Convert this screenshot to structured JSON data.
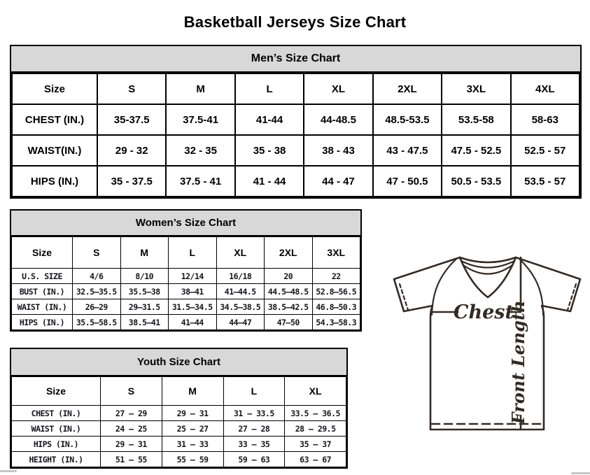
{
  "page": {
    "title": "Basketball Jerseys Size Chart"
  },
  "tables": {
    "men": {
      "title": "Men’s Size Chart",
      "columns": [
        "Size",
        "S",
        "M",
        "L",
        "XL",
        "2XL",
        "3XL",
        "4XL"
      ],
      "rows": [
        {
          "label": "CHEST (IN.)",
          "values": [
            "35-37.5",
            "37.5-41",
            "41-44",
            "44-48.5",
            "48.5-53.5",
            "53.5-58",
            "58-63"
          ]
        },
        {
          "label": "WAIST(IN.)",
          "values": [
            "29 - 32",
            "32 - 35",
            "35 - 38",
            "38 - 43",
            "43 - 47.5",
            "47.5 - 52.5",
            "52.5 - 57"
          ]
        },
        {
          "label": "HIPS (IN.)",
          "values": [
            "35 - 37.5",
            "37.5 - 41",
            "41 - 44",
            "44 - 47",
            "47 - 50.5",
            "50.5 - 53.5",
            "53.5 - 57"
          ]
        }
      ]
    },
    "women": {
      "title": "Women’s Size Chart",
      "columns": [
        "Size",
        "S",
        "M",
        "L",
        "XL",
        "2XL",
        "3XL"
      ],
      "rows": [
        {
          "label": "U.S. SIZE",
          "values": [
            "4/6",
            "8/10",
            "12/14",
            "16/18",
            "20",
            "22"
          ]
        },
        {
          "label": "BUST (IN.)",
          "values": [
            "32.5–35.5",
            "35.5–38",
            "38–41",
            "41–44.5",
            "44.5–48.5",
            "52.8–56.5"
          ]
        },
        {
          "label": "WAIST (IN.)",
          "values": [
            "26–29",
            "29–31.5",
            "31.5–34.5",
            "34.5–38.5",
            "38.5–42.5",
            "46.8–50.3"
          ]
        },
        {
          "label": "HIPS (IN.)",
          "values": [
            "35.5–58.5",
            "38.5–41",
            "41–44",
            "44–47",
            "47–50",
            "54.3–58.3"
          ]
        }
      ]
    },
    "youth": {
      "title": "Youth Size Chart",
      "columns": [
        "Size",
        "S",
        "M",
        "L",
        "XL"
      ],
      "rows": [
        {
          "label": "CHEST (IN.)",
          "values": [
            "27 – 29",
            "29 – 31",
            "31 – 33.5",
            "33.5 – 36.5"
          ]
        },
        {
          "label": "WAIST (IN.)",
          "values": [
            "24 – 25",
            "25 – 27",
            "27 – 28",
            "28 – 29.5"
          ]
        },
        {
          "label": "HIPS (IN.)",
          "values": [
            "29 – 31",
            "31 – 33",
            "33 – 35",
            "35 – 37"
          ]
        },
        {
          "label": "HEIGHT (IN.)",
          "values": [
            "51 – 55",
            "55 – 59",
            "59 – 63",
            "63 – 67"
          ]
        }
      ]
    }
  },
  "diagram": {
    "chest_label": "Chest",
    "front_length_label": "Front Length"
  },
  "colors": {
    "band_bg": "#d8d8d8",
    "table_border": "#000000",
    "diagram_stroke": "#332a24",
    "scroll_fragment": "#c6c6c6"
  }
}
